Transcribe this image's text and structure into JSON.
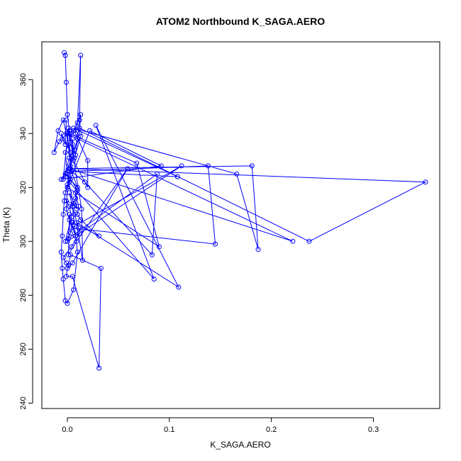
{
  "chart_data": {
    "type": "line",
    "title": "ATOM2 Northbound K_SAGA.AERO",
    "xlabel": "K_SAGA.AERO",
    "ylabel": "Theta (K)",
    "xlim": [
      -0.025,
      0.365
    ],
    "ylim": [
      238,
      374
    ],
    "x_ticks": [
      0.0,
      0.1,
      0.2,
      0.3
    ],
    "x_tick_labels": [
      "0.0",
      "0.1",
      "0.2",
      "0.3"
    ],
    "y_ticks": [
      240,
      260,
      280,
      300,
      320,
      340,
      360
    ],
    "y_tick_labels": [
      "240",
      "260",
      "280",
      "300",
      "320",
      "340",
      "360"
    ],
    "grid": false,
    "legend": "none",
    "color": "#0000ff",
    "marker": "open-circle",
    "series": [
      {
        "x": [
          -0.003,
          -0.002,
          -0.001,
          0.0,
          0.002,
          0.005,
          0.008,
          0.012,
          0.013,
          0.01,
          0.008,
          0.02,
          0.02,
          0.006,
          0.005,
          0.003,
          0.0,
          -0.002,
          -0.003,
          -0.004,
          -0.005,
          -0.006,
          -0.005,
          -0.004,
          -0.002,
          0.0,
          0.006,
          0.01,
          0.008,
          0.002,
          -0.001,
          0.0,
          0.003,
          0.007,
          0.01,
          0.012,
          0.013,
          0.006,
          -0.002,
          0.0,
          0.01,
          0.008,
          0.005,
          0.007,
          0.011,
          0.012,
          0.004,
          -0.004,
          -0.001,
          0.001,
          0.003,
          0.033,
          0.031,
          0.005,
          -0.001,
          0.0,
          0.005,
          0.059,
          0.009,
          0.001,
          0.002,
          0.004,
          0.008,
          0.005,
          0.002,
          0.009,
          0.008,
          0.011,
          0.01,
          0.013,
          0.031,
          0.005,
          0.003,
          -0.002,
          0.004,
          0.002,
          -0.001,
          0.006,
          0.0,
          0.004,
          0.01,
          -0.002,
          0.0,
          0.002,
          0.085,
          0.028,
          0.109,
          0.009,
          0.015,
          0.014,
          0.002,
          0.068,
          0.09,
          0.0,
          0.022,
          0.092,
          -0.006,
          0.007,
          0.013,
          0.002,
          -0.004,
          0.001,
          0.004,
          0.017,
          0.083,
          0.088,
          0.001,
          0.0,
          0.112,
          0.004,
          0.145,
          0.138,
          0.002,
          0.108,
          0.006,
          0.166,
          0.187,
          0.181,
          0.002,
          0.221,
          -0.001,
          0.012,
          0.237,
          0.351,
          0.003,
          0.0,
          -0.008,
          -0.013,
          -0.009,
          -0.004,
          0.003,
          -0.006,
          -0.005,
          -0.002,
          -0.001
        ],
        "y": [
          370,
          369,
          359,
          347,
          341,
          336,
          332,
          345,
          369,
          344,
          340,
          330,
          320,
          330,
          338,
          323,
          321,
          318,
          315,
          310,
          302,
          296,
          290,
          286,
          278,
          277,
          282,
          296,
          302,
          308,
          312,
          320,
          328,
          334,
          338,
          340,
          347,
          341,
          333,
          325,
          319,
          316,
          313,
          310,
          305,
          303,
          298,
          294,
          292,
          291,
          295,
          290,
          253,
          287,
          287,
          290,
          292,
          327,
          300,
          295,
          310,
          307,
          302,
          313,
          318,
          312,
          318,
          313,
          310,
          308,
          302,
          307,
          303,
          300,
          309,
          313,
          315,
          314,
          324,
          326,
          320,
          325,
          325,
          322,
          286,
          343,
          283,
          307,
          293,
          312,
          340,
          329,
          298,
          320,
          341,
          328,
          323,
          331,
          339,
          331,
          323,
          342,
          326,
          322,
          295,
          325,
          301,
          300,
          328,
          305,
          299,
          328,
          326,
          324,
          342,
          325,
          297,
          328,
          327,
          300,
          340,
          342,
          300,
          322,
          327,
          340,
          337,
          333,
          341,
          345,
          333,
          340,
          338,
          336,
          345
        ]
      }
    ]
  }
}
